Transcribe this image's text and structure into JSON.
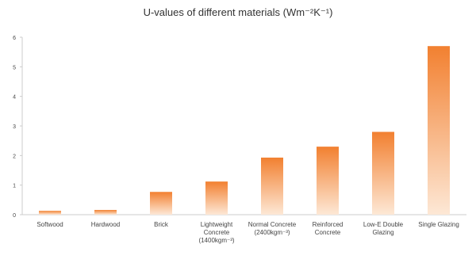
{
  "chart_data": {
    "type": "bar",
    "title": "U-values of different materials (Wm⁻²K⁻¹)",
    "xlabel": "",
    "ylabel": "",
    "ylim": [
      0,
      6
    ],
    "yticks": [
      "0",
      "1",
      "2",
      "3",
      "4",
      "5",
      "6"
    ],
    "grid": false,
    "legend": "none",
    "categories": [
      "Softwood",
      "Hardwood",
      "Brick",
      "Lightweight\nConcrete\n(1400kgm⁻³)",
      "Normal Concrete\n(2400kgm⁻³)",
      "Reinforced\nConcrete",
      "Low-E Double\nGlazing",
      "Single Glazing"
    ],
    "values": [
      0.13,
      0.16,
      0.77,
      1.12,
      1.93,
      2.3,
      2.8,
      5.7
    ]
  },
  "colors": {
    "bar_top": "#f28030",
    "bar_bottom": "#fde8d6",
    "axis": "#cccccc",
    "text": "#444444"
  }
}
